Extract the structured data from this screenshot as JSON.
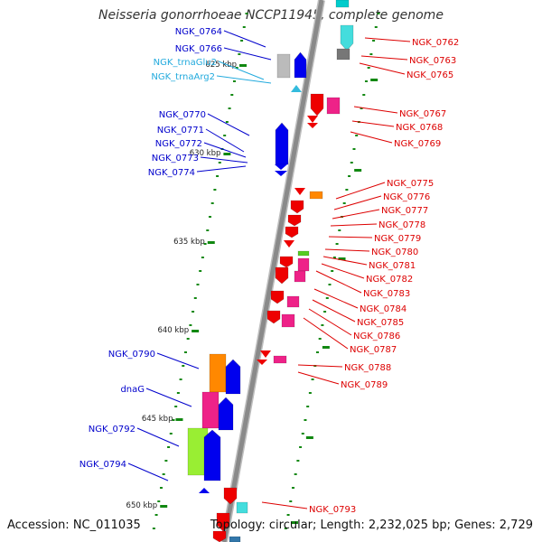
{
  "header": {
    "title": "Neisseria gonorrhoeae NCCP11945, complete genome"
  },
  "footer": {
    "accession": "Accession: NC_011035",
    "summary": "Topology: circular; Length: 2,232,025 bp; Genes: 2,729"
  },
  "colors": {
    "backbone": "#8a8a8a",
    "left_gene_label": "#0000cc",
    "trna_label": "#22aadd",
    "right_gene_label": "#dd0000",
    "tick": "#118811"
  },
  "axis": {
    "ticks": [
      {
        "label": "625 kbp"
      },
      {
        "label": "630 kbp"
      },
      {
        "label": "635 kbp"
      },
      {
        "label": "640 kbp"
      },
      {
        "label": "645 kbp"
      },
      {
        "label": "650 kbp"
      }
    ]
  },
  "left_labels": [
    {
      "text": "NGK_0764",
      "kind": "gene"
    },
    {
      "text": "NGK_0766",
      "kind": "gene"
    },
    {
      "text": "NGK_trnaGlu2",
      "kind": "trna"
    },
    {
      "text": "NGK_trnaArg2",
      "kind": "trna"
    },
    {
      "text": "NGK_0770",
      "kind": "gene"
    },
    {
      "text": "NGK_0771",
      "kind": "gene"
    },
    {
      "text": "NGK_0772",
      "kind": "gene"
    },
    {
      "text": "NGK_0773",
      "kind": "gene"
    },
    {
      "text": "NGK_0774",
      "kind": "gene"
    },
    {
      "text": "NGK_0790",
      "kind": "gene"
    },
    {
      "text": "dnaG",
      "kind": "gene"
    },
    {
      "text": "NGK_0792",
      "kind": "gene"
    },
    {
      "text": "NGK_0794",
      "kind": "gene"
    }
  ],
  "right_labels": [
    {
      "text": "NGK_0762"
    },
    {
      "text": "NGK_0763"
    },
    {
      "text": "NGK_0765"
    },
    {
      "text": "NGK_0767"
    },
    {
      "text": "NGK_0768"
    },
    {
      "text": "NGK_0769"
    },
    {
      "text": "NGK_0775"
    },
    {
      "text": "NGK_0776"
    },
    {
      "text": "NGK_0777"
    },
    {
      "text": "NGK_0778"
    },
    {
      "text": "NGK_0779"
    },
    {
      "text": "NGK_0780"
    },
    {
      "text": "NGK_0781"
    },
    {
      "text": "NGK_0782"
    },
    {
      "text": "NGK_0783"
    },
    {
      "text": "NGK_0784"
    },
    {
      "text": "NGK_0785"
    },
    {
      "text": "NGK_0786"
    },
    {
      "text": "NGK_0787"
    },
    {
      "text": "NGK_0788"
    },
    {
      "text": "NGK_0789"
    },
    {
      "text": "NGK_0793"
    }
  ]
}
